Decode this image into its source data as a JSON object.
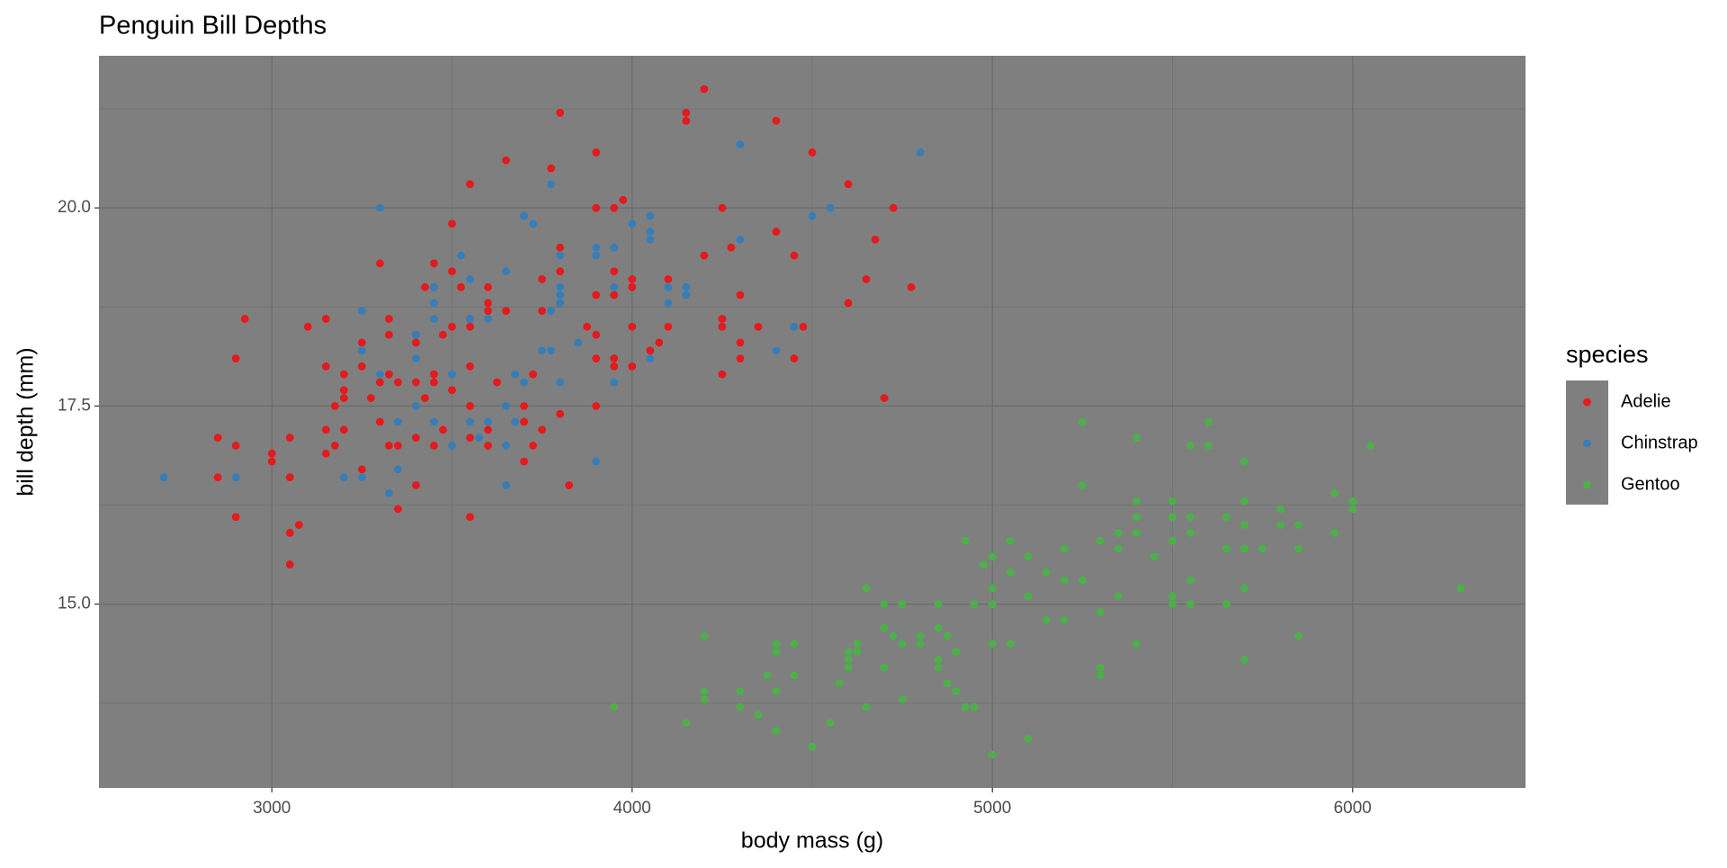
{
  "chart_data": {
    "type": "scatter",
    "title": "Penguin Bill Depths",
    "xlabel": "body mass (g)",
    "ylabel": "bill depth (mm)",
    "legend_title": "species",
    "xlim": [
      2520,
      6480
    ],
    "ylim": [
      12.68,
      21.92
    ],
    "xticks": [
      3000,
      4000,
      5000,
      6000
    ],
    "yticks": [
      {
        "value": 15,
        "label": "15.0"
      },
      17.5,
      {
        "value": 20,
        "label": "20.0"
      }
    ],
    "xminor": [
      3500,
      4500,
      5500,
      6500
    ],
    "yminor": [
      13.75,
      16.25,
      18.75,
      21.25
    ],
    "grid": true,
    "legend": "right",
    "series": [
      {
        "name": "Adelie",
        "color": "#e41a1c",
        "x": [
          2850,
          2850,
          2900,
          2900,
          2900,
          2925,
          3000,
          3000,
          3050,
          3050,
          3050,
          3050,
          3075,
          3100,
          3150,
          3150,
          3150,
          3150,
          3175,
          3175,
          3200,
          3200,
          3200,
          3200,
          3250,
          3250,
          3250,
          3275,
          3300,
          3300,
          3300,
          3325,
          3325,
          3325,
          3325,
          3350,
          3350,
          3350,
          3400,
          3400,
          3400,
          3400,
          3400,
          3425,
          3425,
          3450,
          3450,
          3450,
          3450,
          3450,
          3475,
          3475,
          3500,
          3500,
          3500,
          3500,
          3525,
          3550,
          3550,
          3550,
          3550,
          3550,
          3550,
          3550,
          3600,
          3600,
          3600,
          3600,
          3600,
          3625,
          3650,
          3650,
          3700,
          3700,
          3700,
          3725,
          3725,
          3750,
          3750,
          3750,
          3775,
          3800,
          3800,
          3800,
          3800,
          3825,
          3875,
          3900,
          3900,
          3900,
          3900,
          3900,
          3900,
          3950,
          3950,
          3950,
          3950,
          3950,
          3975,
          4000,
          4000,
          4000,
          4000,
          4050,
          4075,
          4100,
          4100,
          4200,
          4200,
          4150,
          4150,
          4250,
          4250,
          4250,
          4250,
          4275,
          4300,
          4300,
          4300,
          4350,
          4400,
          4400,
          4450,
          4450,
          4475,
          4500,
          4600,
          4600,
          4650,
          4675,
          4700,
          4725,
          4775
        ],
        "values": [
          17.1,
          16.6,
          17.0,
          16.1,
          18.1,
          18.6,
          16.9,
          16.8,
          17.1,
          16.6,
          15.9,
          15.5,
          16.0,
          18.5,
          18.6,
          18.0,
          17.2,
          16.9,
          17.5,
          17.0,
          17.9,
          17.7,
          17.6,
          17.2,
          18.0,
          18.3,
          16.7,
          17.6,
          19.3,
          17.8,
          17.3,
          18.6,
          18.4,
          17.9,
          17.0,
          17.8,
          17.0,
          16.2,
          18.4,
          18.3,
          17.8,
          17.1,
          16.5,
          19.0,
          17.6,
          19.3,
          19.0,
          17.9,
          17.8,
          17.0,
          18.4,
          17.2,
          19.8,
          19.2,
          18.5,
          17.7,
          19.0,
          18.6,
          18.5,
          20.3,
          18.0,
          17.5,
          17.1,
          16.1,
          19.0,
          18.8,
          18.7,
          17.2,
          17.0,
          17.8,
          20.6,
          18.7,
          17.5,
          17.3,
          16.8,
          17.9,
          17.0,
          18.7,
          19.1,
          17.2,
          20.5,
          19.5,
          21.2,
          19.2,
          17.4,
          16.5,
          18.5,
          20.7,
          20.0,
          18.9,
          18.4,
          18.1,
          17.5,
          20.0,
          19.2,
          18.9,
          18.1,
          18.0,
          20.1,
          19.1,
          19.0,
          18.5,
          18.0,
          18.2,
          18.3,
          19.1,
          18.5,
          21.5,
          19.4,
          21.2,
          21.1,
          20.0,
          18.6,
          18.5,
          17.9,
          19.5,
          18.9,
          18.3,
          18.1,
          18.5,
          21.1,
          19.7,
          19.4,
          18.1,
          18.5,
          20.7,
          20.3,
          18.8,
          19.1,
          19.6,
          17.6,
          20.0,
          19.0
        ]
      },
      {
        "name": "Chinstrap",
        "color": "#377eb8",
        "x": [
          2700,
          2900,
          3250,
          3250,
          3250,
          3200,
          3300,
          3300,
          3325,
          3350,
          3350,
          3400,
          3400,
          3400,
          3450,
          3450,
          3450,
          3450,
          3500,
          3500,
          3525,
          3550,
          3550,
          3550,
          3575,
          3600,
          3600,
          3650,
          3650,
          3650,
          3650,
          3675,
          3675,
          3700,
          3700,
          3725,
          3750,
          3775,
          3775,
          3775,
          3800,
          3800,
          3800,
          3800,
          3800,
          3850,
          3900,
          3900,
          3900,
          3950,
          3950,
          3950,
          4000,
          4050,
          4050,
          4050,
          4050,
          4100,
          4100,
          4150,
          4150,
          4300,
          4300,
          4400,
          4450,
          4500,
          4550,
          4800
        ],
        "values": [
          16.6,
          16.6,
          18.7,
          18.2,
          16.6,
          16.6,
          20.0,
          17.9,
          16.4,
          17.3,
          16.7,
          18.4,
          18.1,
          17.5,
          18.8,
          18.6,
          19.0,
          17.3,
          17.9,
          17.0,
          19.4,
          19.1,
          18.6,
          17.3,
          17.1,
          17.3,
          18.6,
          19.2,
          17.5,
          17.0,
          16.5,
          17.9,
          17.3,
          19.9,
          17.8,
          19.8,
          18.2,
          20.3,
          18.7,
          18.2,
          19.4,
          19.0,
          18.9,
          18.8,
          17.8,
          18.3,
          19.5,
          19.4,
          16.8,
          19.5,
          19.0,
          17.8,
          19.8,
          19.9,
          19.7,
          19.6,
          18.1,
          19.0,
          18.8,
          19.0,
          18.9,
          20.8,
          19.6,
          18.2,
          18.5,
          19.9,
          20.0,
          20.7
        ]
      },
      {
        "name": "Gentoo",
        "color": "#4daf4a",
        "x": [
          3950,
          4150,
          4200,
          4200,
          4200,
          4300,
          4300,
          4350,
          4375,
          4400,
          4400,
          4400,
          4400,
          4450,
          4450,
          4500,
          4550,
          4575,
          4600,
          4600,
          4600,
          4625,
          4625,
          4650,
          4650,
          4700,
          4700,
          4700,
          4725,
          4750,
          4750,
          4750,
          4800,
          4800,
          4850,
          4850,
          4850,
          4850,
          4875,
          4875,
          4900,
          4900,
          4925,
          4925,
          4950,
          4950,
          4975,
          5000,
          5000,
          5000,
          5000,
          5000,
          5050,
          5050,
          5050,
          5100,
          5100,
          5100,
          5150,
          5150,
          5200,
          5200,
          5200,
          5250,
          5250,
          5250,
          5300,
          5300,
          5300,
          5300,
          5350,
          5350,
          5350,
          5400,
          5400,
          5400,
          5400,
          5400,
          5450,
          5500,
          5500,
          5500,
          5500,
          5500,
          5550,
          5550,
          5550,
          5550,
          5550,
          5600,
          5600,
          5650,
          5650,
          5650,
          5700,
          5700,
          5700,
          5700,
          5700,
          5700,
          5750,
          5800,
          5800,
          5850,
          5850,
          5850,
          5950,
          5950,
          6000,
          6000,
          6050,
          6300
        ],
        "values": [
          13.7,
          13.5,
          14.6,
          13.9,
          13.8,
          13.9,
          13.7,
          13.6,
          14.1,
          14.5,
          14.4,
          13.9,
          13.4,
          14.5,
          14.1,
          13.2,
          13.5,
          14.0,
          14.4,
          14.3,
          14.2,
          14.5,
          14.4,
          15.2,
          13.7,
          15.0,
          14.7,
          14.2,
          14.6,
          15.0,
          14.5,
          13.8,
          14.6,
          14.5,
          15.0,
          14.7,
          14.3,
          14.2,
          14.6,
          14.0,
          14.4,
          13.9,
          15.8,
          13.7,
          15.0,
          13.7,
          15.5,
          15.6,
          15.2,
          15.0,
          14.5,
          13.1,
          15.8,
          15.4,
          14.5,
          15.6,
          15.1,
          13.3,
          15.4,
          14.8,
          15.7,
          15.3,
          14.8,
          17.3,
          16.5,
          15.3,
          15.8,
          14.9,
          14.2,
          14.1,
          15.9,
          15.7,
          15.1,
          17.1,
          16.3,
          16.1,
          15.9,
          14.5,
          15.6,
          16.3,
          16.1,
          15.8,
          15.1,
          15.0,
          17.0,
          16.1,
          15.9,
          15.3,
          15.0,
          17.3,
          17.0,
          16.1,
          15.7,
          15.0,
          16.8,
          16.3,
          16.0,
          15.7,
          15.2,
          14.3,
          15.7,
          16.2,
          16.0,
          16.0,
          15.7,
          14.6,
          16.4,
          15.9,
          16.3,
          16.2,
          17.0,
          15.2
        ]
      }
    ]
  }
}
